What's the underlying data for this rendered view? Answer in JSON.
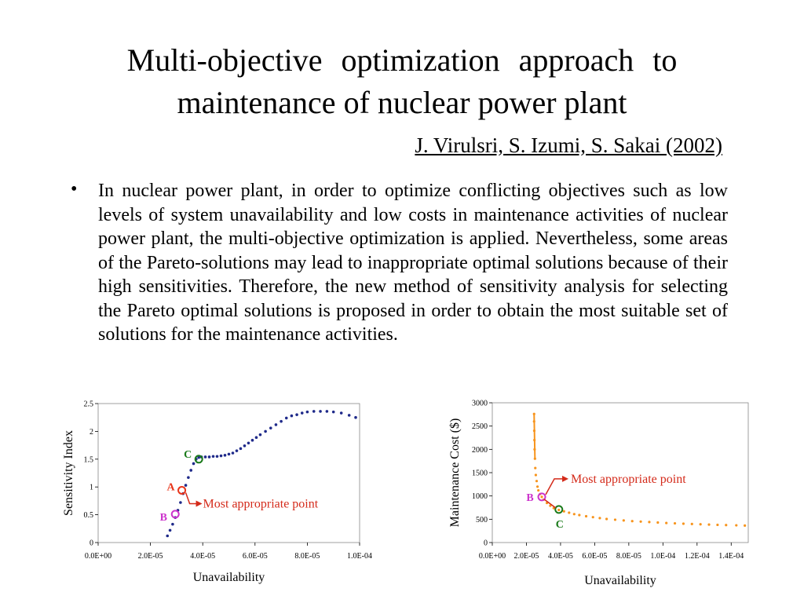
{
  "slide": {
    "title_line1": "Multi-objective optimization approach to",
    "title_line2": "maintenance of nuclear power plant",
    "authors": "J. Virulsri, S. Izumi, S. Sakai (2002)",
    "bullet": "•",
    "paragraph": "In nuclear power plant, in order to optimize conflicting objectives such as low levels of system unavailability and low costs in maintenance activities of nuclear power plant, the multi-objective optimization is applied. Nevertheless, some areas of the Pareto-solutions may lead to inappropriate optimal solutions because of their high sensitivities. Therefore, the new method of sensitivity analysis for selecting the Pareto optimal solutions is proposed in order to obtain the most suitable set of solutions for the maintenance activities."
  },
  "colors": {
    "series_left": "#1f2a8a",
    "series_right": "#f7941d",
    "point_A": "#e8361b",
    "point_B": "#cc33cc",
    "point_C": "#1a7a1a",
    "annotation": "#d42a1a"
  },
  "chart_data": [
    {
      "type": "scatter",
      "title": "",
      "xlabel": "Unavailability",
      "ylabel": "Sensitivity Index",
      "xlim": [
        0,
        0.0001
      ],
      "ylim": [
        0,
        2.5
      ],
      "xticks": [
        "0.0E+00",
        "2.0E-05",
        "4.0E-05",
        "6.0E-05",
        "8.0E-05",
        "1.0E-04"
      ],
      "yticks": [
        "0",
        "0.5",
        "1",
        "1.5",
        "2",
        "2.5"
      ],
      "grid": false,
      "series": [
        {
          "x": [
            2.65e-05,
            2.75e-05,
            2.85e-05,
            2.95e-05,
            3.05e-05,
            3.15e-05,
            3.25e-05,
            3.35e-05,
            3.45e-05,
            3.55e-05,
            3.65e-05,
            3.75e-05,
            3.85e-05,
            3.95e-05,
            4.1e-05,
            4.25e-05,
            4.4e-05,
            4.55e-05,
            4.7e-05,
            4.85e-05,
            5e-05,
            5.15e-05,
            5.3e-05,
            5.45e-05,
            5.6e-05,
            5.75e-05,
            5.9e-05,
            6.05e-05,
            6.2e-05,
            6.4e-05,
            6.6e-05,
            6.8e-05,
            7e-05,
            7.2e-05,
            7.4e-05,
            7.6e-05,
            7.8e-05,
            8e-05,
            8.25e-05,
            8.5e-05,
            8.75e-05,
            9e-05,
            9.3e-05,
            9.6e-05,
            9.85e-05
          ],
          "y": [
            0.12,
            0.22,
            0.33,
            0.45,
            0.58,
            0.72,
            0.88,
            1.03,
            1.17,
            1.3,
            1.42,
            1.5,
            1.53,
            1.54,
            1.54,
            1.54,
            1.55,
            1.55,
            1.56,
            1.57,
            1.59,
            1.61,
            1.65,
            1.69,
            1.74,
            1.79,
            1.84,
            1.89,
            1.94,
            2.0,
            2.06,
            2.12,
            2.18,
            2.24,
            2.28,
            2.3,
            2.33,
            2.35,
            2.36,
            2.36,
            2.36,
            2.35,
            2.33,
            2.29,
            2.25
          ]
        }
      ],
      "points": [
        {
          "label": "A",
          "x": 3.2e-05,
          "y": 0.94
        },
        {
          "label": "B",
          "x": 2.95e-05,
          "y": 0.51
        },
        {
          "label": "C",
          "x": 3.85e-05,
          "y": 1.5
        }
      ],
      "annotation": "Most appropriate point"
    },
    {
      "type": "scatter",
      "title": "",
      "xlabel": "Unavailability",
      "ylabel": "Maintenance Cost ($)",
      "xlim": [
        0,
        0.00015
      ],
      "ylim": [
        0,
        3000
      ],
      "xticks": [
        "0.0E+00",
        "2.0E-05",
        "4.0E-05",
        "6.0E-05",
        "8.0E-05",
        "1.0E-04",
        "1.2E-04",
        "1.4E-04"
      ],
      "yticks": [
        "0",
        "500",
        "1000",
        "1500",
        "2000",
        "2500",
        "3000"
      ],
      "grid": false,
      "series": [
        {
          "x": [
            2.45e-05,
            2.45e-05,
            2.46e-05,
            2.47e-05,
            2.48e-05,
            2.5e-05,
            2.52e-05,
            2.55e-05,
            2.6e-05,
            2.65e-05,
            2.7e-05,
            2.8e-05,
            2.9e-05,
            3e-05,
            3.2e-05,
            3.4e-05,
            3.6e-05,
            3.9e-05,
            4.2e-05,
            4.5e-05,
            4.8e-05,
            5.1e-05,
            5.5e-05,
            5.9e-05,
            6.3e-05,
            6.7e-05,
            7.2e-05,
            7.7e-05,
            8.2e-05,
            8.7e-05,
            9.2e-05,
            9.7e-05,
            0.000102,
            0.000107,
            0.000112,
            0.000117,
            0.000122,
            0.000127,
            0.000132,
            0.000137,
            0.000143,
            0.000148
          ],
          "y": [
            2760,
            2600,
            2400,
            2200,
            2000,
            1800,
            1600,
            1450,
            1320,
            1200,
            1120,
            1040,
            980,
            920,
            850,
            790,
            740,
            700,
            670,
            640,
            610,
            590,
            565,
            545,
            525,
            505,
            490,
            475,
            460,
            450,
            440,
            430,
            420,
            412,
            405,
            398,
            392,
            385,
            380,
            375,
            370,
            365
          ]
        }
      ],
      "points": [
        {
          "label": "B",
          "x": 2.9e-05,
          "y": 980
        },
        {
          "label": "C",
          "x": 3.9e-05,
          "y": 710
        }
      ],
      "annotation": "Most appropriate point"
    }
  ]
}
